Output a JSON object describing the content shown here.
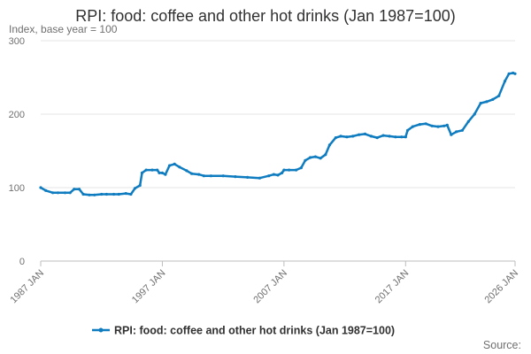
{
  "chart_data": {
    "type": "line",
    "title": "RPI: food: coffee and other hot drinks (Jan 1987=100)",
    "subtitle": "Index, base year = 100",
    "source_label": "Source:",
    "ylim": [
      0,
      300
    ],
    "y_ticks": [
      0,
      100,
      200,
      300
    ],
    "x_range": [
      "1987-01",
      "2026-01"
    ],
    "x_ticks": [
      "1987 JAN",
      "1997 JAN",
      "2007 JAN",
      "2017 JAN",
      "2026 JAN"
    ],
    "x_tick_dates": [
      "1987-01",
      "1997-01",
      "2007-01",
      "2017-01",
      "2026-01"
    ],
    "grid": true,
    "legend_position": "bottom",
    "series_color": "#0F7CC0",
    "series": [
      {
        "name": "RPI: food: coffee and other hot drinks (Jan 1987=100)",
        "points": [
          [
            "1987-01",
            100
          ],
          [
            "1987-06",
            96
          ],
          [
            "1988-01",
            93
          ],
          [
            "1988-06",
            93
          ],
          [
            "1989-01",
            93
          ],
          [
            "1989-06",
            93
          ],
          [
            "1989-10",
            98
          ],
          [
            "1990-03",
            98
          ],
          [
            "1990-07",
            91
          ],
          [
            "1991-01",
            90
          ],
          [
            "1991-06",
            90
          ],
          [
            "1992-01",
            91
          ],
          [
            "1992-06",
            91
          ],
          [
            "1993-01",
            91
          ],
          [
            "1993-06",
            91
          ],
          [
            "1994-01",
            92
          ],
          [
            "1994-06",
            91
          ],
          [
            "1994-10",
            99
          ],
          [
            "1995-03",
            103
          ],
          [
            "1995-05",
            120
          ],
          [
            "1995-09",
            124
          ],
          [
            "1996-03",
            124
          ],
          [
            "1996-08",
            124
          ],
          [
            "1996-10",
            120
          ],
          [
            "1997-01",
            120
          ],
          [
            "1997-04",
            118
          ],
          [
            "1997-08",
            130
          ],
          [
            "1998-01",
            132
          ],
          [
            "1998-06",
            128
          ],
          [
            "1999-01",
            123
          ],
          [
            "1999-06",
            119
          ],
          [
            "2000-01",
            118
          ],
          [
            "2000-06",
            116
          ],
          [
            "2001-01",
            116
          ],
          [
            "2002-01",
            116
          ],
          [
            "2003-01",
            115
          ],
          [
            "2004-01",
            114
          ],
          [
            "2005-01",
            113
          ],
          [
            "2005-10",
            116
          ],
          [
            "2006-03",
            118
          ],
          [
            "2006-07",
            117
          ],
          [
            "2006-11",
            120
          ],
          [
            "2007-01",
            124
          ],
          [
            "2007-06",
            124
          ],
          [
            "2008-01",
            124
          ],
          [
            "2008-06",
            127
          ],
          [
            "2008-10",
            137
          ],
          [
            "2009-03",
            141
          ],
          [
            "2009-08",
            142
          ],
          [
            "2010-01",
            140
          ],
          [
            "2010-06",
            145
          ],
          [
            "2010-10",
            158
          ],
          [
            "2011-04",
            168
          ],
          [
            "2011-09",
            170
          ],
          [
            "2012-03",
            169
          ],
          [
            "2012-09",
            170
          ],
          [
            "2013-03",
            172
          ],
          [
            "2013-09",
            173
          ],
          [
            "2014-03",
            170
          ],
          [
            "2014-09",
            168
          ],
          [
            "2015-03",
            171
          ],
          [
            "2015-09",
            170
          ],
          [
            "2016-03",
            169
          ],
          [
            "2016-09",
            169
          ],
          [
            "2017-01",
            169
          ],
          [
            "2017-03",
            178
          ],
          [
            "2017-08",
            183
          ],
          [
            "2018-03",
            186
          ],
          [
            "2018-09",
            187
          ],
          [
            "2019-03",
            184
          ],
          [
            "2019-09",
            183
          ],
          [
            "2020-03",
            184
          ],
          [
            "2020-06",
            185
          ],
          [
            "2020-10",
            172
          ],
          [
            "2021-03",
            176
          ],
          [
            "2021-09",
            178
          ],
          [
            "2022-03",
            190
          ],
          [
            "2022-09",
            200
          ],
          [
            "2023-03",
            215
          ],
          [
            "2023-09",
            217
          ],
          [
            "2024-03",
            220
          ],
          [
            "2024-09",
            225
          ],
          [
            "2025-03",
            245
          ],
          [
            "2025-07",
            255
          ],
          [
            "2025-11",
            256
          ],
          [
            "2026-01",
            255
          ]
        ]
      }
    ]
  }
}
